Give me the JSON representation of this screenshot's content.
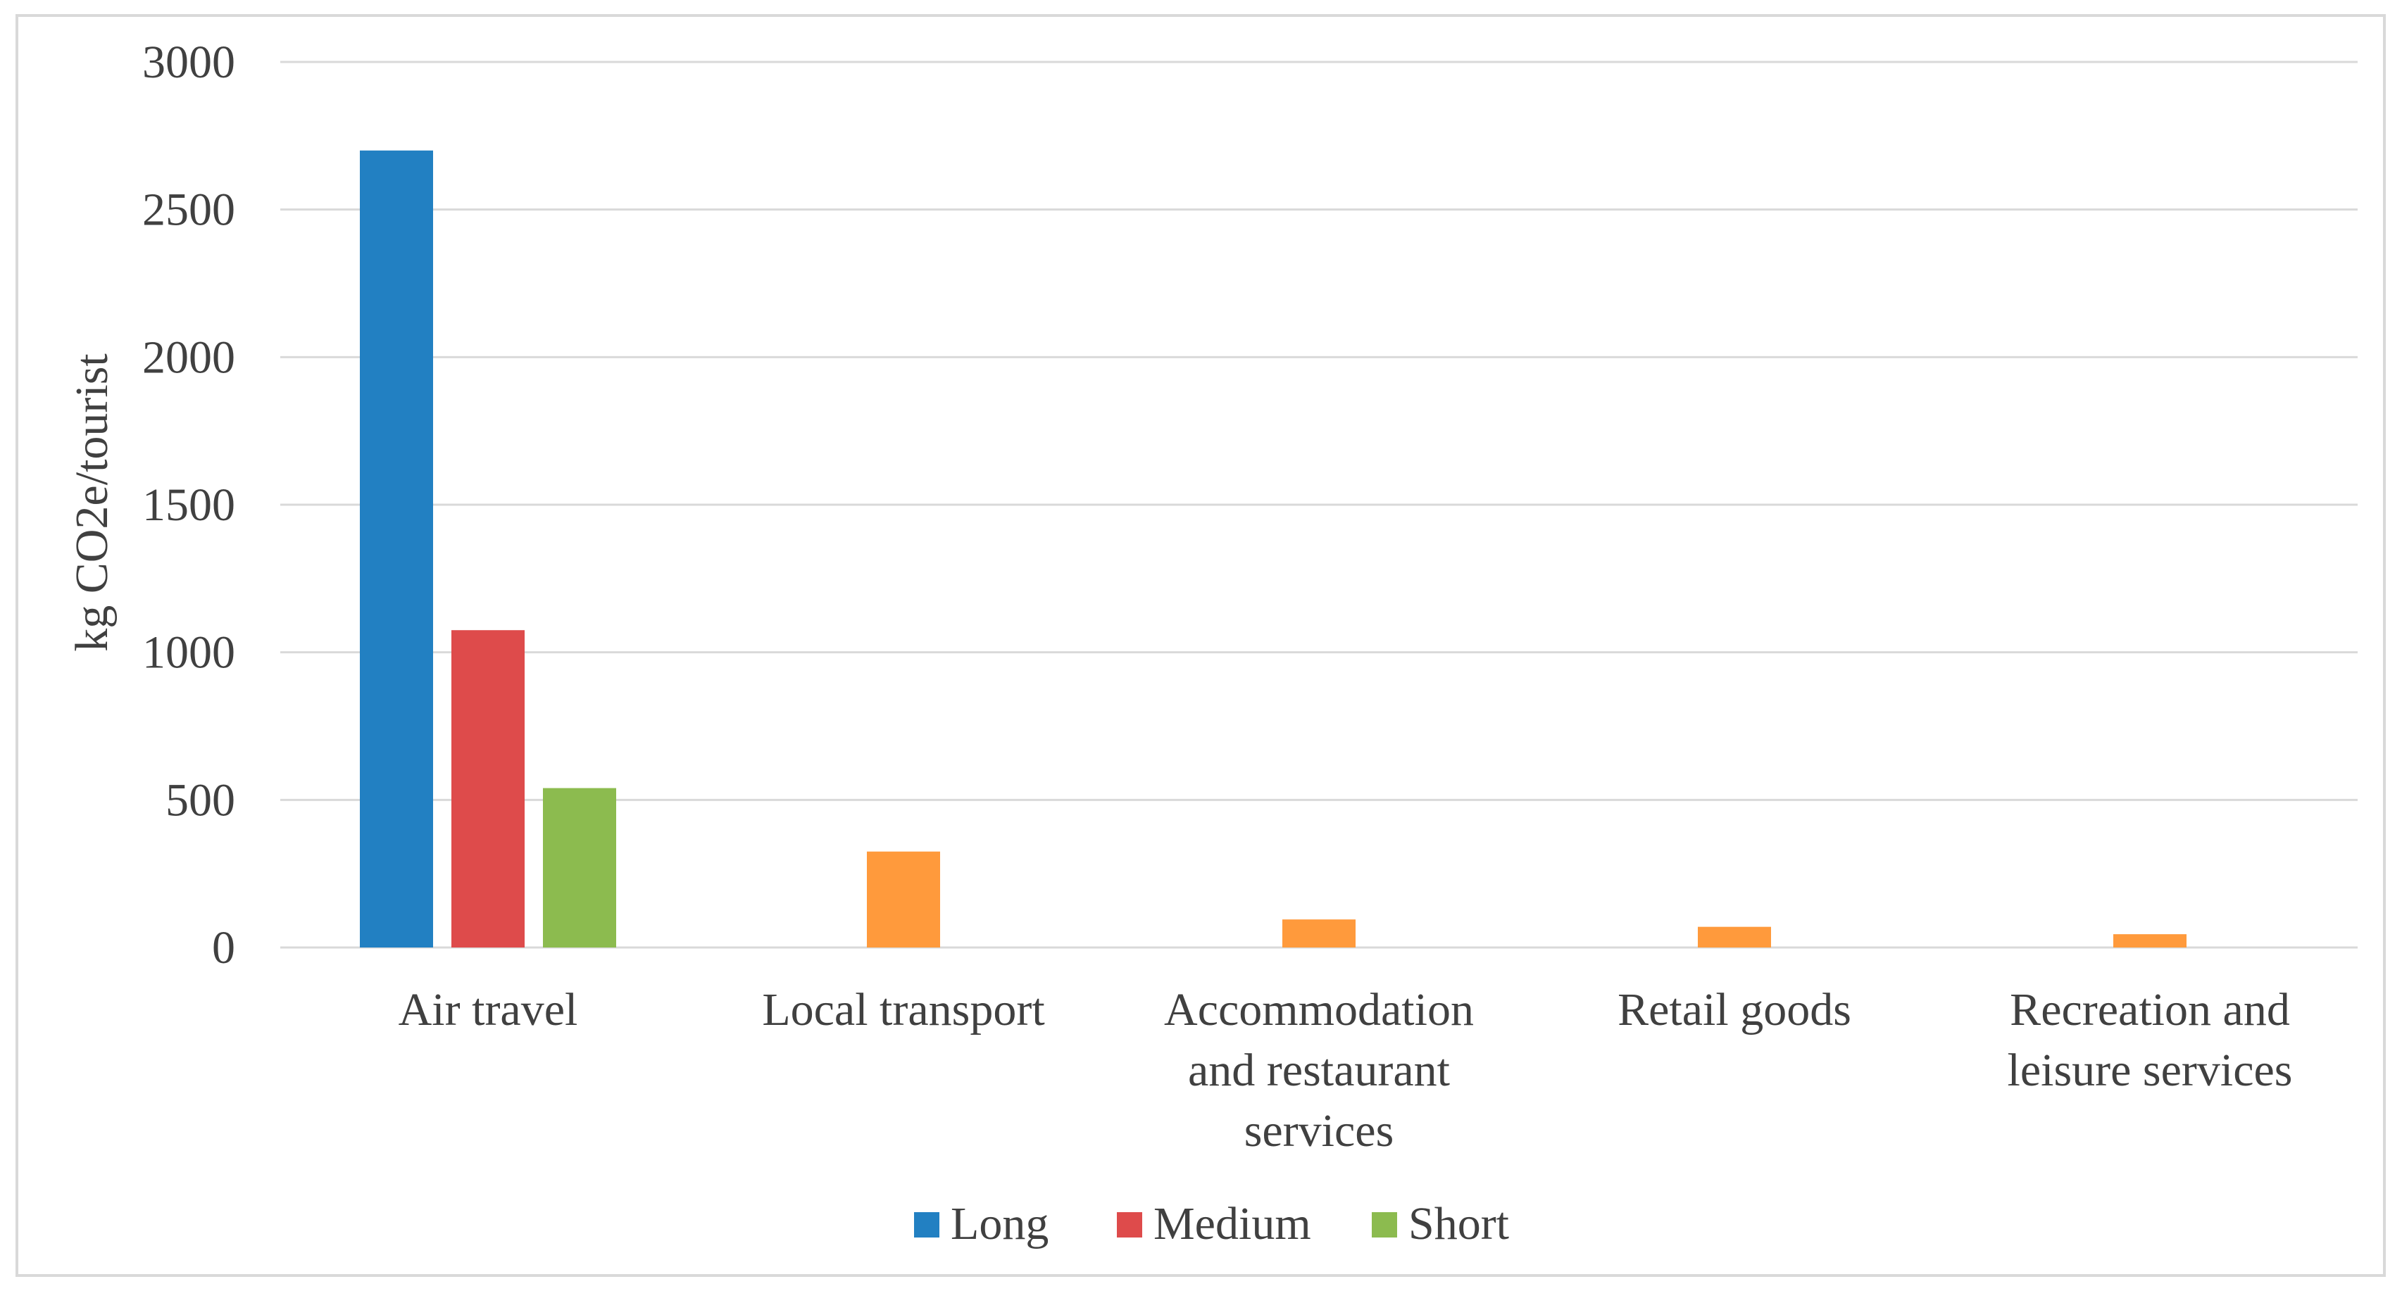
{
  "chart_data": {
    "type": "bar",
    "title": "",
    "xlabel": "",
    "ylabel": "kg CO2e/tourist",
    "ylim": [
      0,
      3000
    ],
    "yticks": [
      0,
      500,
      1000,
      1500,
      2000,
      2500,
      3000
    ],
    "grid": true,
    "legend_position": "bottom",
    "categories": [
      [
        "Air travel"
      ],
      [
        "Local transport"
      ],
      [
        "Accommodation",
        "and restaurant",
        "services"
      ],
      [
        "Retail goods"
      ],
      [
        "Recreation and",
        "leisure services"
      ]
    ],
    "legend": [
      {
        "name": "Long",
        "color": "#2280c2"
      },
      {
        "name": "Medium",
        "color": "#de4b4b"
      },
      {
        "name": "Short",
        "color": "#8cbb4f"
      }
    ],
    "bars": [
      {
        "category": 0,
        "series": "Long",
        "value": 2700,
        "color": "#2280c2"
      },
      {
        "category": 0,
        "series": "Medium",
        "value": 1075,
        "color": "#de4b4b"
      },
      {
        "category": 0,
        "series": "Short",
        "value": 540,
        "color": "#8cbb4f"
      },
      {
        "category": 1,
        "value": 325,
        "color": "#ff9a3c"
      },
      {
        "category": 2,
        "value": 95,
        "color": "#ff9a3c"
      },
      {
        "category": 3,
        "value": 70,
        "color": "#ff9a3c"
      },
      {
        "category": 4,
        "value": 45,
        "color": "#ff9a3c"
      }
    ]
  }
}
